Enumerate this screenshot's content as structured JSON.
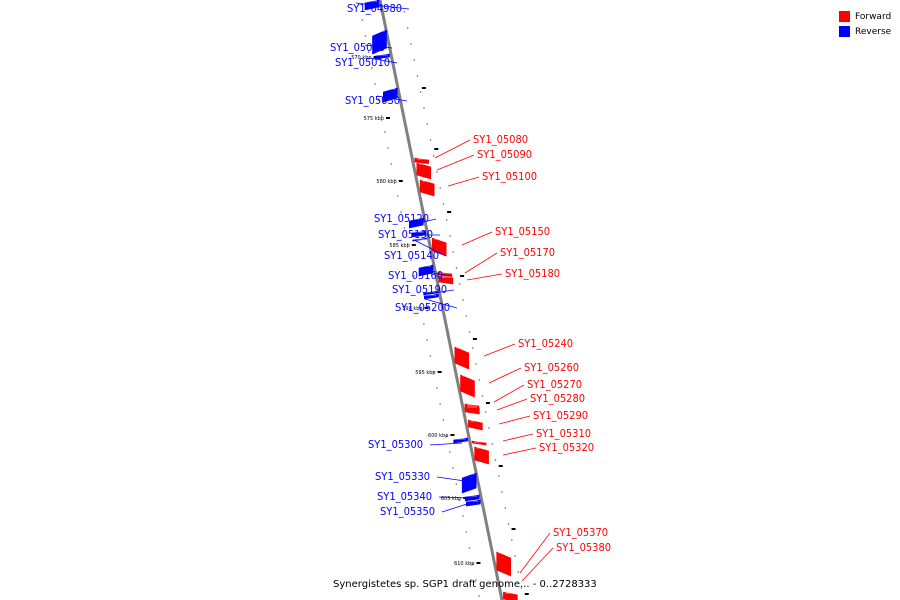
{
  "legend": {
    "items": [
      {
        "label": "Forward",
        "color": "#ff0000"
      },
      {
        "label": "Reverse",
        "color": "#0000ff"
      }
    ]
  },
  "caption": "Synergistetes sp. SGP1 draft genome... - 0..2728333",
  "colors": {
    "forward": "#ff0000",
    "reverse": "#0000ff",
    "backbone": "#808080"
  },
  "kbp_ticks": [
    "570 kbp",
    "575 kbp",
    "580 kbp",
    "585 kbp",
    "590 kbp",
    "595 kbp",
    "600 kbp",
    "605 kbp",
    "610 kbp"
  ],
  "genes": [
    {
      "name": "SY1_04980",
      "strand": "reverse"
    },
    {
      "name": "SY1_05000",
      "strand": "reverse"
    },
    {
      "name": "SY1_05010",
      "strand": "reverse"
    },
    {
      "name": "SY1_05030",
      "strand": "reverse"
    },
    {
      "name": "SY1_05080",
      "strand": "forward"
    },
    {
      "name": "SY1_05090",
      "strand": "forward"
    },
    {
      "name": "SY1_05100",
      "strand": "forward"
    },
    {
      "name": "SY1_05120",
      "strand": "reverse"
    },
    {
      "name": "SY1_05130",
      "strand": "reverse"
    },
    {
      "name": "SY1_05140",
      "strand": "reverse"
    },
    {
      "name": "SY1_05150",
      "strand": "forward"
    },
    {
      "name": "SY1_05160",
      "strand": "reverse"
    },
    {
      "name": "SY1_05170",
      "strand": "forward"
    },
    {
      "name": "SY1_05180",
      "strand": "forward"
    },
    {
      "name": "SY1_05190",
      "strand": "reverse"
    },
    {
      "name": "SY1_05200",
      "strand": "reverse"
    },
    {
      "name": "SY1_05240",
      "strand": "forward"
    },
    {
      "name": "SY1_05260",
      "strand": "forward"
    },
    {
      "name": "SY1_05270",
      "strand": "forward"
    },
    {
      "name": "SY1_05280",
      "strand": "forward"
    },
    {
      "name": "SY1_05290",
      "strand": "forward"
    },
    {
      "name": "SY1_05300",
      "strand": "reverse"
    },
    {
      "name": "SY1_05310",
      "strand": "forward"
    },
    {
      "name": "SY1_05320",
      "strand": "forward"
    },
    {
      "name": "SY1_05330",
      "strand": "reverse"
    },
    {
      "name": "SY1_05340",
      "strand": "reverse"
    },
    {
      "name": "SY1_05350",
      "strand": "reverse"
    },
    {
      "name": "SY1_05370",
      "strand": "forward"
    },
    {
      "name": "SY1_05380",
      "strand": "forward"
    }
  ]
}
